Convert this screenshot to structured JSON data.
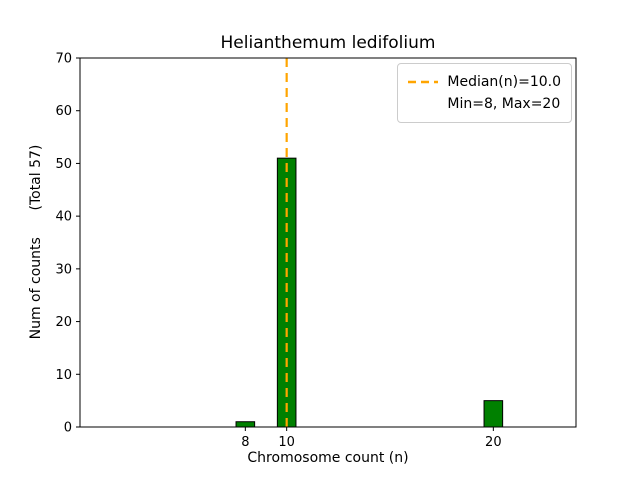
{
  "chart_data": {
    "type": "bar",
    "title": "Helianthemum ledifolium",
    "xlabel": "Chromosome count (n)",
    "ylabel": "Num of counts      (Total 57)",
    "x": [
      8,
      10,
      20
    ],
    "values": [
      1,
      51,
      5
    ],
    "total": 57,
    "bar_color": "#008000",
    "bar_edge_color": "#000000",
    "bar_width_units": 0.9,
    "xlim": [
      0,
      24
    ],
    "ylim": [
      0,
      70
    ],
    "xticks": [
      8,
      10,
      20
    ],
    "yticks": [
      0,
      10,
      20,
      30,
      40,
      50,
      60,
      70
    ],
    "grid": false,
    "median_line": {
      "x": 10,
      "color": "#FFA500",
      "style": "dashed"
    },
    "legend": {
      "position": "upper right",
      "entries": [
        {
          "label": "Median(n)=10.0",
          "handle": "dashed-line",
          "color": "#FFA500"
        },
        {
          "label": "Min=8, Max=20",
          "handle": "none"
        }
      ]
    }
  }
}
